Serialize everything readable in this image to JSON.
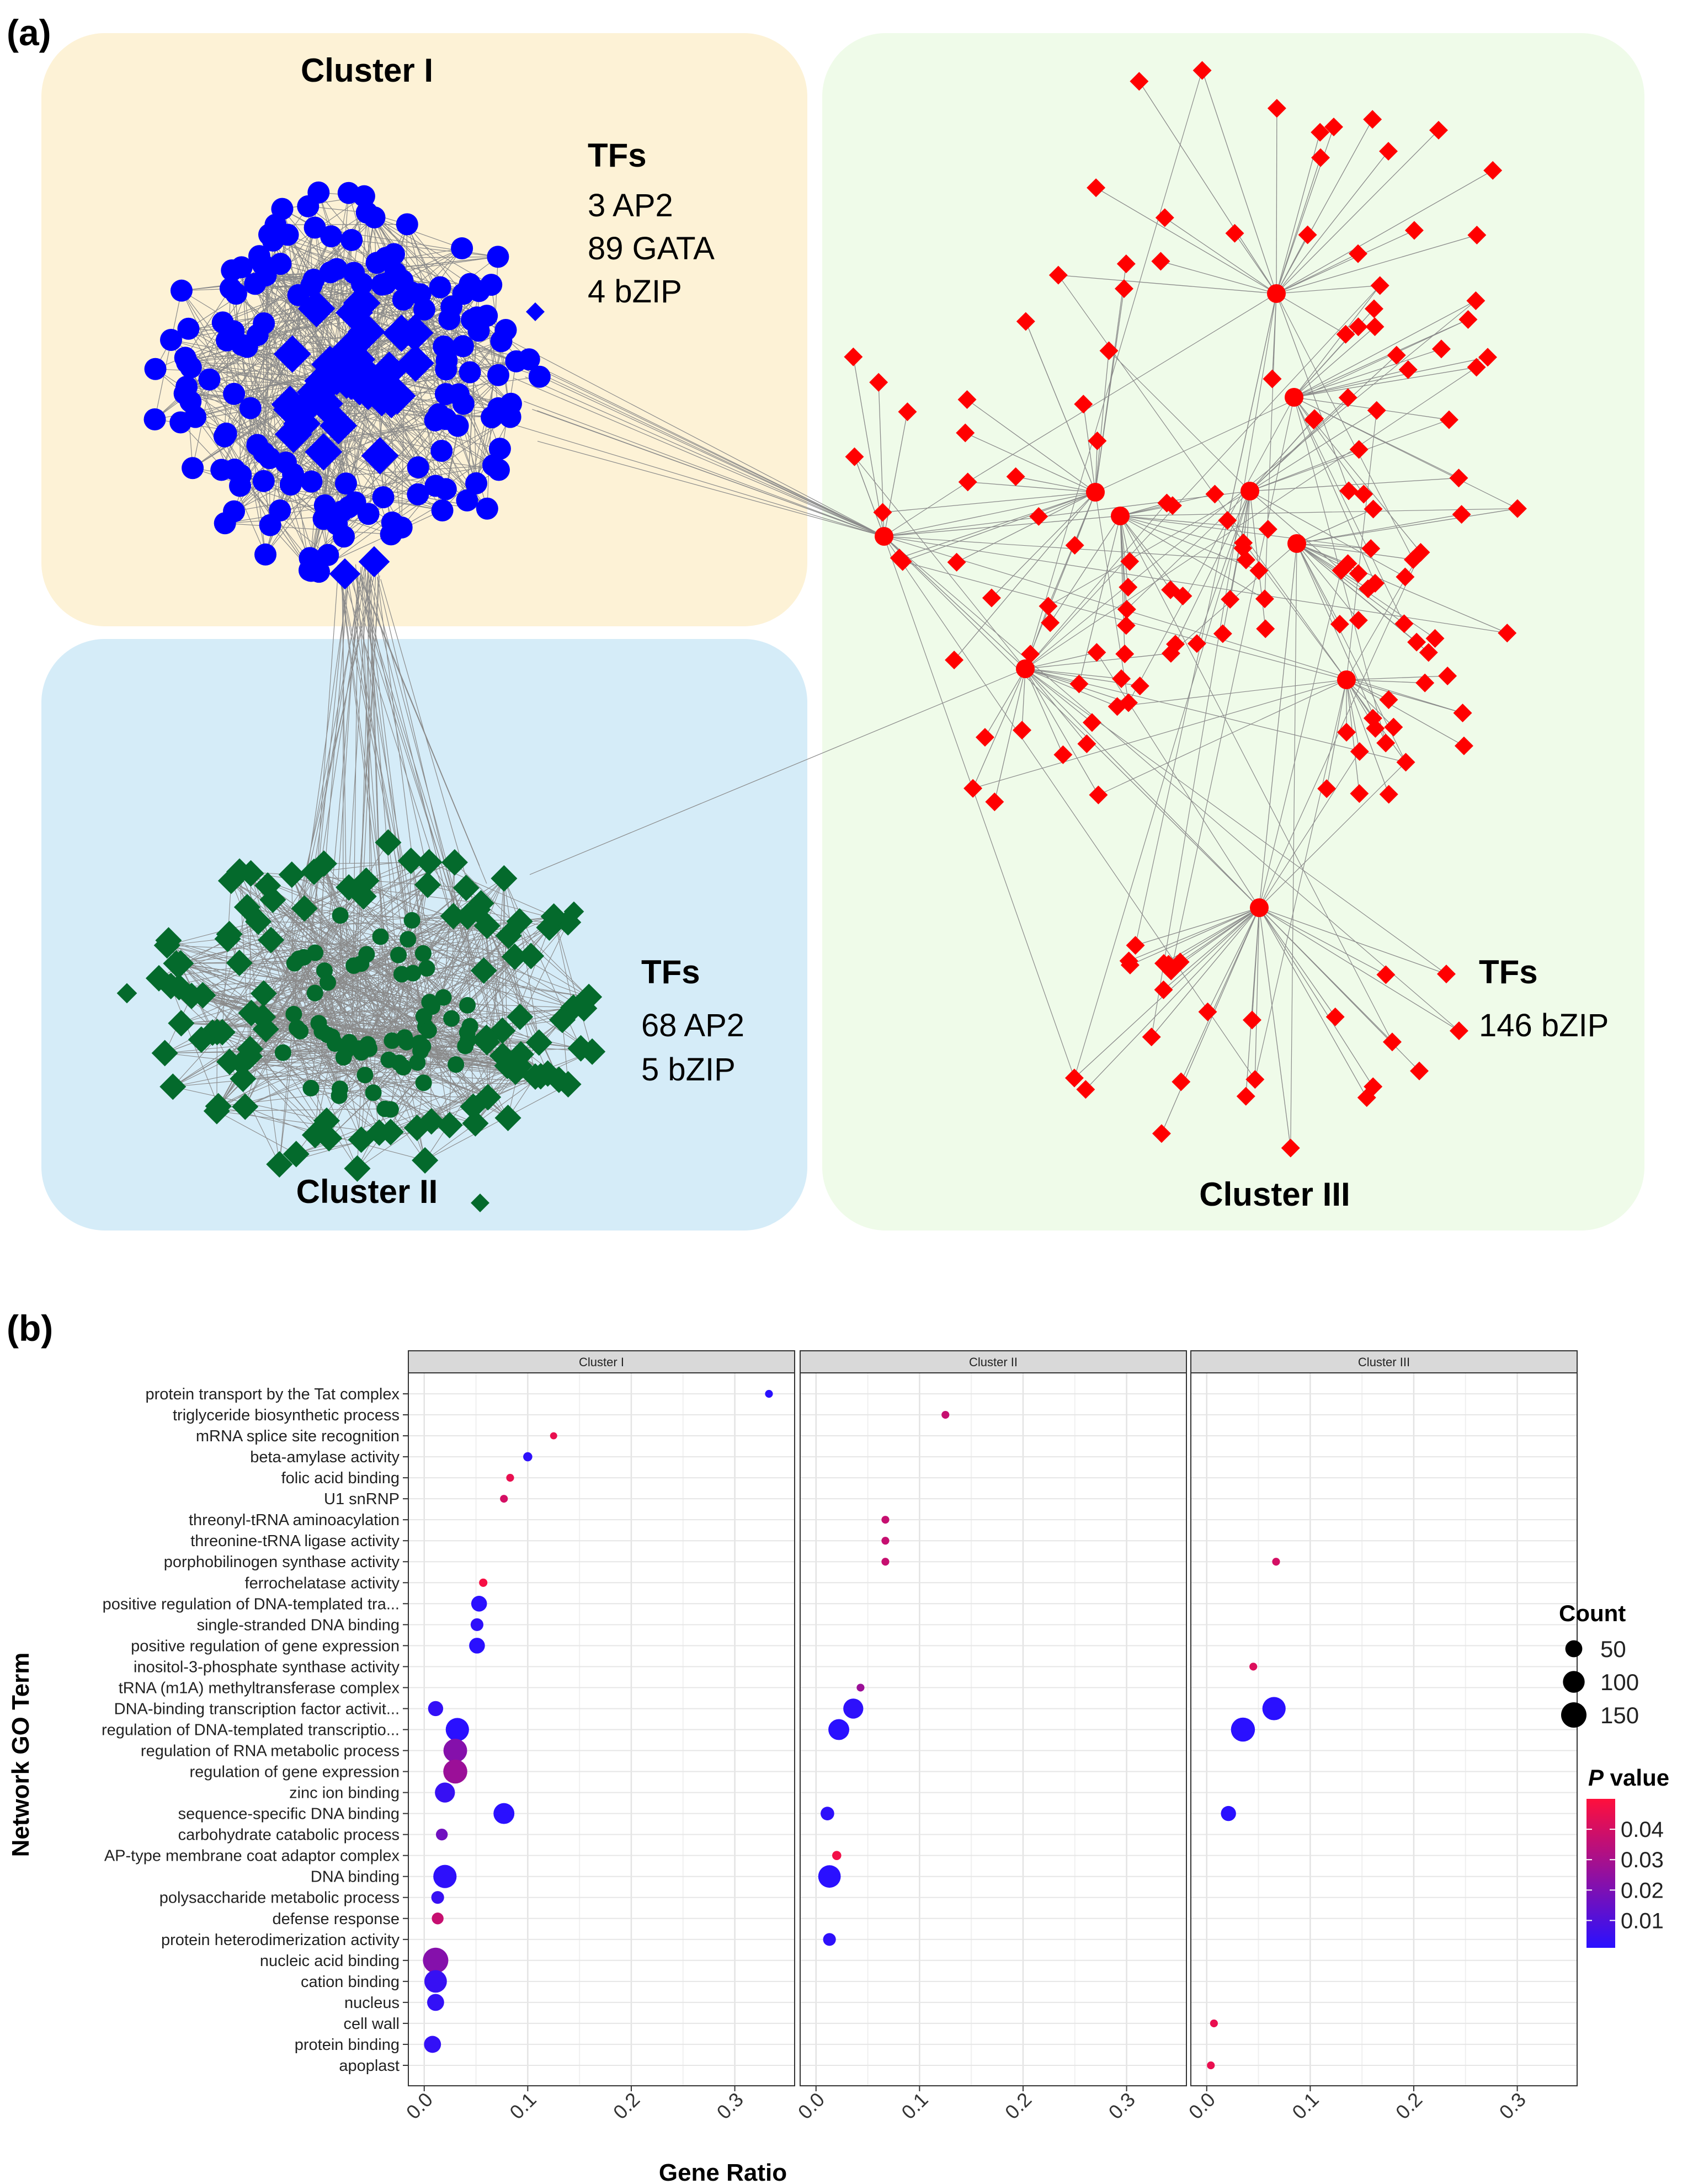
{
  "panel_a": {
    "label": "(a)",
    "clusters": [
      {
        "name": "Cluster I",
        "color": "#0000ff",
        "bg": "#fdf2d6",
        "tf_heading": "TFs",
        "tf_lines": [
          "3 AP2",
          "89 GATA",
          "4 bZIP"
        ]
      },
      {
        "name": "Cluster II",
        "color": "#046a2c",
        "bg": "#d5ecf8",
        "tf_heading": "TFs",
        "tf_lines": [
          "68 AP2",
          "5 bZIP"
        ]
      },
      {
        "name": "Cluster III",
        "color": "#ff0000",
        "bg": "#effbe9",
        "tf_heading": "TFs",
        "tf_lines": [
          "146 bZIP"
        ]
      }
    ],
    "edge_color": "#8a8a8a"
  },
  "panel_b": {
    "label": "(b)"
  },
  "chart_data": {
    "type": "scatter",
    "subtype": "faceted dot plot",
    "facets": [
      "Cluster I",
      "Cluster II",
      "Cluster III"
    ],
    "xlabel": "Gene Ratio",
    "ylabel": "Network GO Term",
    "xlim": [
      -0.01,
      0.345
    ],
    "xticks": [
      "0.0",
      "0.1",
      "0.2",
      "0.3"
    ],
    "xtick_values": [
      0,
      0.1,
      0.2,
      0.3
    ],
    "terms": [
      "protein transport by the Tat complex",
      "triglyceride biosynthetic process",
      "mRNA splice site recognition",
      "beta-amylase activity",
      "folic acid binding",
      "U1 snRNP",
      "threonyl-tRNA aminoacylation",
      "threonine-tRNA ligase activity",
      "porphobilinogen synthase activity",
      "ferrochelatase activity",
      "positive regulation of DNA-templated tra...",
      "single-stranded DNA binding",
      "positive regulation of gene expression",
      "inositol-3-phosphate synthase activity",
      "tRNA (m1A) methyltransferase complex",
      "DNA-binding transcription factor activit...",
      "regulation of DNA-templated transcriptio...",
      "regulation of RNA metabolic process",
      "regulation of gene expression",
      "zinc ion binding",
      "sequence-specific DNA binding",
      "carbohydrate catabolic process",
      "AP-type membrane coat adaptor complex",
      "DNA binding",
      "polysaccharide metabolic process",
      "defense response",
      "protein heterodimerization activity",
      "nucleic acid binding",
      "cation binding",
      "nucleus",
      "cell wall",
      "protein binding",
      "apoplast"
    ],
    "points": [
      {
        "facet": 0,
        "term": 0,
        "x": 0.333,
        "count": 2,
        "p": 0.001
      },
      {
        "facet": 0,
        "term": 2,
        "x": 0.125,
        "count": 1,
        "p": 0.045
      },
      {
        "facet": 0,
        "term": 3,
        "x": 0.1,
        "count": 5,
        "p": 0.002
      },
      {
        "facet": 0,
        "term": 4,
        "x": 0.083,
        "count": 2,
        "p": 0.045
      },
      {
        "facet": 0,
        "term": 5,
        "x": 0.077,
        "count": 2,
        "p": 0.04
      },
      {
        "facet": 0,
        "term": 9,
        "x": 0.057,
        "count": 3,
        "p": 0.048
      },
      {
        "facet": 0,
        "term": 10,
        "x": 0.053,
        "count": 40,
        "p": 0.001
      },
      {
        "facet": 0,
        "term": 11,
        "x": 0.051,
        "count": 20,
        "p": 0.002
      },
      {
        "facet": 0,
        "term": 12,
        "x": 0.051,
        "count": 40,
        "p": 0.001
      },
      {
        "facet": 0,
        "term": 15,
        "x": 0.011,
        "count": 35,
        "p": 0.003
      },
      {
        "facet": 0,
        "term": 16,
        "x": 0.032,
        "count": 120,
        "p": 0.001
      },
      {
        "facet": 0,
        "term": 17,
        "x": 0.03,
        "count": 125,
        "p": 0.022
      },
      {
        "facet": 0,
        "term": 18,
        "x": 0.03,
        "count": 130,
        "p": 0.027
      },
      {
        "facet": 0,
        "term": 19,
        "x": 0.02,
        "count": 80,
        "p": 0.004
      },
      {
        "facet": 0,
        "term": 20,
        "x": 0.077,
        "count": 90,
        "p": 0.001
      },
      {
        "facet": 0,
        "term": 21,
        "x": 0.017,
        "count": 15,
        "p": 0.017
      },
      {
        "facet": 0,
        "term": 23,
        "x": 0.02,
        "count": 120,
        "p": 0.002
      },
      {
        "facet": 0,
        "term": 24,
        "x": 0.013,
        "count": 20,
        "p": 0.004
      },
      {
        "facet": 0,
        "term": 25,
        "x": 0.013,
        "count": 15,
        "p": 0.037
      },
      {
        "facet": 0,
        "term": 27,
        "x": 0.011,
        "count": 150,
        "p": 0.022
      },
      {
        "facet": 0,
        "term": 28,
        "x": 0.011,
        "count": 110,
        "p": 0.004
      },
      {
        "facet": 0,
        "term": 29,
        "x": 0.011,
        "count": 50,
        "p": 0.003
      },
      {
        "facet": 0,
        "term": 31,
        "x": 0.008,
        "count": 50,
        "p": 0.003
      },
      {
        "facet": 1,
        "term": 1,
        "x": 0.125,
        "count": 2,
        "p": 0.037
      },
      {
        "facet": 1,
        "term": 6,
        "x": 0.067,
        "count": 2,
        "p": 0.037
      },
      {
        "facet": 1,
        "term": 7,
        "x": 0.067,
        "count": 2,
        "p": 0.037
      },
      {
        "facet": 1,
        "term": 8,
        "x": 0.067,
        "count": 2,
        "p": 0.037
      },
      {
        "facet": 1,
        "term": 14,
        "x": 0.043,
        "count": 2,
        "p": 0.027
      },
      {
        "facet": 1,
        "term": 15,
        "x": 0.036,
        "count": 80,
        "p": 0.002
      },
      {
        "facet": 1,
        "term": 16,
        "x": 0.022,
        "count": 90,
        "p": 0.001
      },
      {
        "facet": 1,
        "term": 20,
        "x": 0.011,
        "count": 25,
        "p": 0.002
      },
      {
        "facet": 1,
        "term": 22,
        "x": 0.02,
        "count": 5,
        "p": 0.047
      },
      {
        "facet": 1,
        "term": 23,
        "x": 0.013,
        "count": 110,
        "p": 0.001
      },
      {
        "facet": 1,
        "term": 26,
        "x": 0.013,
        "count": 20,
        "p": 0.002
      },
      {
        "facet": 2,
        "term": 8,
        "x": 0.067,
        "count": 2,
        "p": 0.04
      },
      {
        "facet": 2,
        "term": 13,
        "x": 0.045,
        "count": 2,
        "p": 0.042
      },
      {
        "facet": 2,
        "term": 15,
        "x": 0.065,
        "count": 120,
        "p": 0.001
      },
      {
        "facet": 2,
        "term": 16,
        "x": 0.035,
        "count": 130,
        "p": 0.001
      },
      {
        "facet": 2,
        "term": 20,
        "x": 0.021,
        "count": 35,
        "p": 0.001
      },
      {
        "facet": 2,
        "term": 30,
        "x": 0.007,
        "count": 2,
        "p": 0.045
      },
      {
        "facet": 2,
        "term": 32,
        "x": 0.004,
        "count": 2,
        "p": 0.045
      }
    ],
    "legend_count": {
      "title": "Count",
      "values": [
        50,
        100,
        150
      ],
      "labels": [
        "50",
        "100",
        "150"
      ]
    },
    "legend_p": {
      "title_italic": "P",
      "title_rest": " value",
      "labels": [
        "0.04",
        "0.03",
        "0.02",
        "0.01"
      ],
      "values": [
        0.04,
        0.03,
        0.02,
        0.01
      ],
      "range": [
        0.001,
        0.05
      ],
      "low_color": "#2a10ff",
      "high_color": "#ff0f3c"
    }
  }
}
